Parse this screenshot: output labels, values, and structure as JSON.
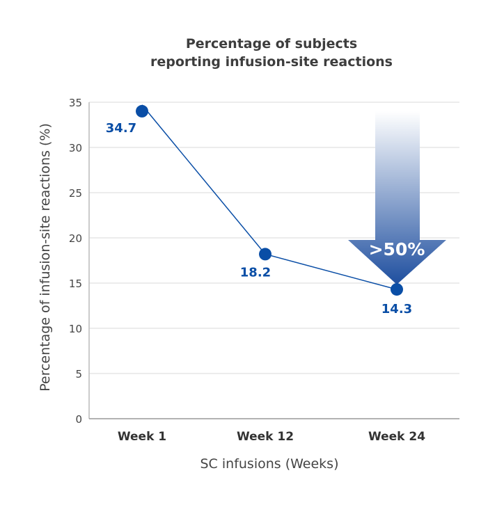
{
  "chart_data": {
    "type": "line",
    "title": [
      "Percentage of subjects",
      "reporting infusion-site reactions"
    ],
    "xlabel": "SC infusions  (Weeks)",
    "ylabel": "Percentage of infusion-site reactions (%)",
    "categories": [
      "Week 1",
      "Week 12",
      "Week 24"
    ],
    "values": [
      34.7,
      18.2,
      14.3
    ],
    "data_labels": [
      "34.7",
      "18.2",
      "14.3"
    ],
    "ylim": [
      0,
      35
    ],
    "yticks": [
      0,
      5,
      10,
      15,
      20,
      25,
      30,
      35
    ],
    "grid": true,
    "annotation": ">50%",
    "colors": {
      "series": "#0a4ea6",
      "arrow_top": "#ffffff",
      "arrow_bottom": "#1f4f9f"
    }
  }
}
